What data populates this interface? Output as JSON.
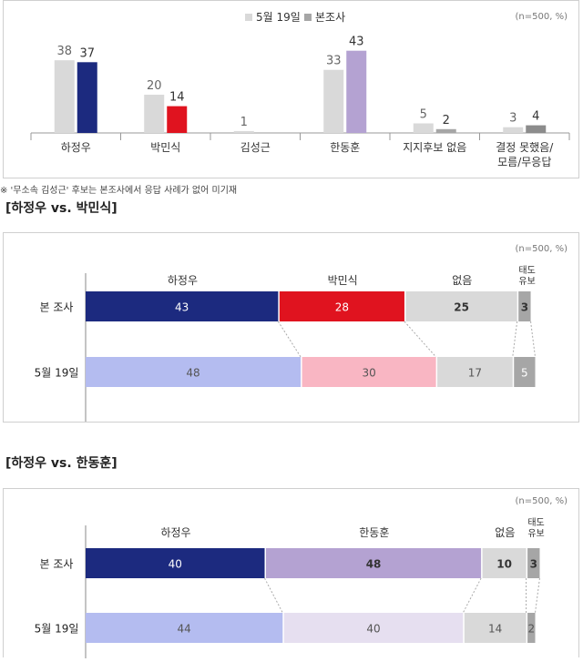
{
  "footnote": "※ '무소속 김성근' 후보는 본조사에서 응답 사례가 없어 미기재",
  "chart_data": [
    {
      "type": "bar",
      "note": "(n=500, %)",
      "categories": [
        "하정우",
        "박민식",
        "김성근",
        "한동훈",
        "지지후보 없음",
        "결정 못했음/ 모름/무응답"
      ],
      "series": [
        {
          "name": "5월 19일",
          "values": [
            38,
            20,
            1,
            33,
            5,
            3
          ],
          "color": "#d9d9d9"
        },
        {
          "name": "본조사",
          "values": [
            37,
            14,
            null,
            43,
            2,
            4
          ],
          "colors": [
            "#1c2a7f",
            "#e0131f",
            null,
            "#b4a2d2",
            "#a6a6a6",
            "#8c8c8c"
          ]
        }
      ],
      "legend_position": "top-center"
    },
    {
      "type": "stacked-bar",
      "title": "[하정우 vs. 박민식]",
      "note": "(n=500, %)",
      "segments": [
        "하정우",
        "박민식",
        "없음",
        "태도 유보"
      ],
      "rows": [
        {
          "label": "본 조사",
          "values": [
            43,
            28,
            25,
            3
          ],
          "colors": [
            "#1c2a7f",
            "#e0131f",
            "#d9d9d9",
            "#a6a6a6"
          ],
          "text_colors": [
            "#ffffff",
            "#ffffff",
            "#333333",
            "#333333"
          ]
        },
        {
          "label": "5월 19일",
          "values": [
            48,
            30,
            17,
            5
          ],
          "colors": [
            "#b4bcf0",
            "#f9b6c3",
            "#d9d9d9",
            "#a6a6a6"
          ],
          "text_colors": [
            "#555555",
            "#555555",
            "#555555",
            "#ffffff"
          ]
        }
      ]
    },
    {
      "type": "stacked-bar",
      "title": "[하정우 vs. 한동훈]",
      "note": "(n=500, %)",
      "segments": [
        "하정우",
        "한동훈",
        "없음",
        "태도 유보"
      ],
      "rows": [
        {
          "label": "본 조사",
          "values": [
            40,
            48,
            10,
            3
          ],
          "colors": [
            "#1c2a7f",
            "#b4a2d2",
            "#d9d9d9",
            "#a6a6a6"
          ],
          "text_colors": [
            "#ffffff",
            "#333333",
            "#333333",
            "#333333"
          ]
        },
        {
          "label": "5월 19일",
          "values": [
            44,
            40,
            14,
            2
          ],
          "colors": [
            "#b4bcf0",
            "#e6dff0",
            "#d9d9d9",
            "#a6a6a6"
          ],
          "text_colors": [
            "#555555",
            "#555555",
            "#555555",
            "#555555"
          ]
        }
      ]
    }
  ]
}
